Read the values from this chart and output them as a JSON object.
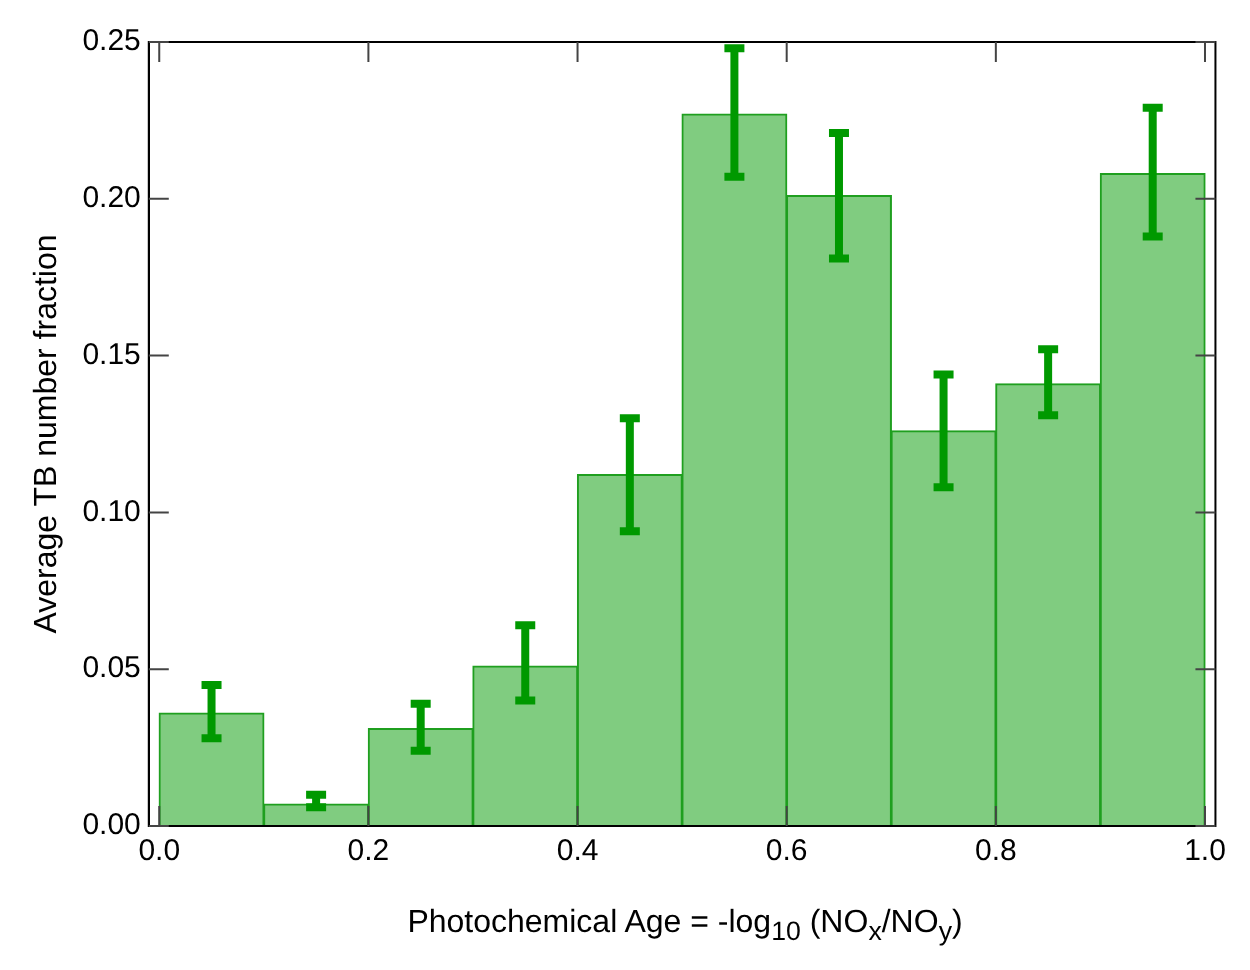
{
  "chart_data": {
    "type": "histogram",
    "xlabel": "Photochemical Age = -log$_{10}$ (NO$_{x}$/NO$_{y}$)",
    "ylabel": "Average TB number fraction",
    "bins": [
      0,
      0.1,
      0.2,
      0.3,
      0.4,
      0.5,
      0.6,
      0.7,
      0.8,
      0.9,
      1.0
    ],
    "values": [
      0.036,
      0.007,
      0.031,
      0.051,
      0.112,
      0.227,
      0.201,
      0.126,
      0.141,
      0.208
    ],
    "errors": [
      [
        0.028,
        0.045
      ],
      [
        0.006,
        0.01
      ],
      [
        0.024,
        0.039
      ],
      [
        0.04,
        0.064
      ],
      [
        0.094,
        0.13
      ],
      [
        0.207,
        0.248
      ],
      [
        0.181,
        0.221
      ],
      [
        0.108,
        0.144
      ],
      [
        0.131,
        0.152
      ],
      [
        0.188,
        0.229
      ]
    ],
    "color": "#80cc80",
    "xlim": [
      -0.01,
      1.01
    ],
    "xticks": [
      {
        "value": 0,
        "label": "0.0"
      },
      0.2,
      0.4,
      0.6,
      0.8,
      {
        "value": 1,
        "label": "1.0"
      }
    ],
    "ylim": [
      0,
      0.25
    ],
    "yticks": [
      {
        "value": 0,
        "label": "0.00"
      },
      0.05,
      {
        "value": 0.1,
        "label": "0.10"
      },
      0.15,
      {
        "value": 0.2,
        "label": "0.20"
      },
      0.25
    ],
    "grid": false
  }
}
